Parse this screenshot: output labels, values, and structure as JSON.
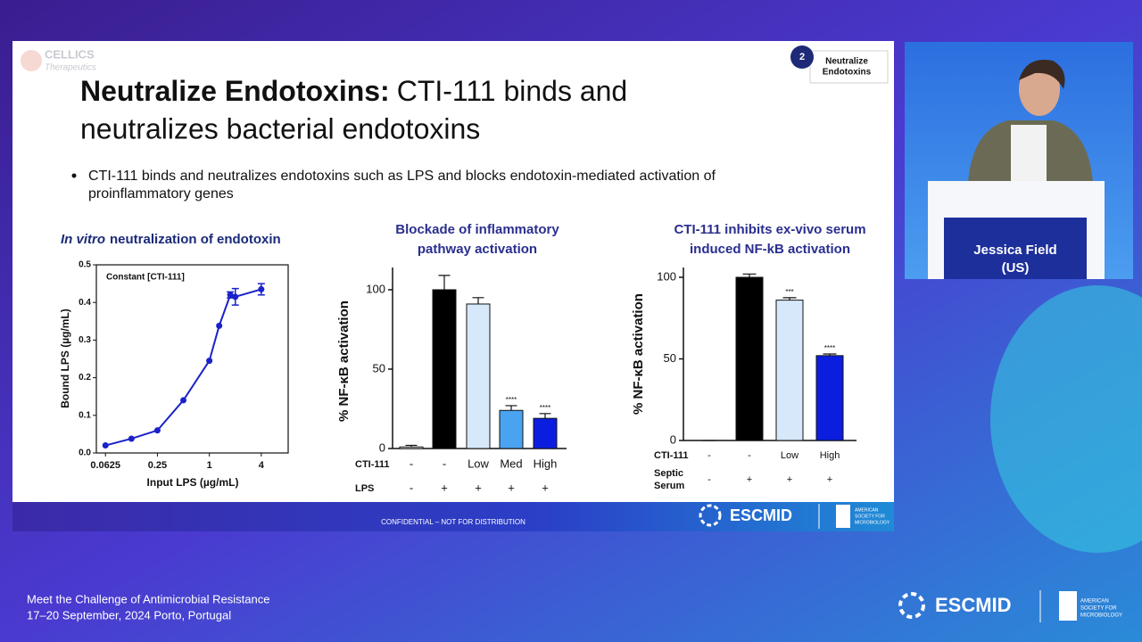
{
  "logo": {
    "name": "CELLICS",
    "sub": "Therapeutics"
  },
  "badge": {
    "number": "2",
    "label": [
      "Neutralize",
      "Endotoxins"
    ]
  },
  "slide_title": {
    "bold": "Neutralize Endotoxins:",
    "rest": [
      "CTI-111 binds and",
      "neutralizes bacterial endotoxins"
    ]
  },
  "bullet": [
    "CTI-111 binds and neutralizes endotoxins such as LPS and blocks endotoxin-mediated activation of",
    "proinflammatory genes"
  ],
  "slide_footer": {
    "confidential": "CONFIDENTIAL – NOT FOR DISTRIBUTION",
    "escmid": "ESCMID",
    "asm": [
      "AMERICAN",
      "SOCIETY FOR",
      "MICROBIOLOGY"
    ]
  },
  "speaker": {
    "name": [
      "Jessica Field",
      "(US)"
    ]
  },
  "event": {
    "title": "Meet the Challenge of Antimicrobial Resistance",
    "dates": "17–20 September, 2024 Porto, Portugal",
    "escmid": "ESCMID",
    "asm": [
      "AMERICAN",
      "SOCIETY FOR",
      "MICROBIOLOGY"
    ]
  },
  "chart_data": [
    {
      "type": "line",
      "title_italic": "In vitro",
      "title": "neutralization of endotoxin",
      "annotation": "Constant [CTI-111]",
      "x_label": "Input LPS (µg/mL)",
      "y_label": "Bound LPS (µg/mL)",
      "x": [
        0.0625,
        0.125,
        0.25,
        0.5,
        1,
        1.3,
        1.75,
        2,
        4
      ],
      "series": [
        {
          "color": "#1a22c8",
          "values": [
            0.02,
            0.038,
            0.06,
            0.14,
            0.245,
            0.338,
            0.42,
            0.415,
            0.435
          ],
          "errors": [
            null,
            null,
            null,
            null,
            null,
            null,
            0.008,
            0.022,
            0.015
          ]
        }
      ],
      "xscale": "log",
      "xlim": [
        0.049,
        8.2
      ],
      "ylim": [
        0,
        0.5
      ],
      "xticks": [
        0.0625,
        0.25,
        1,
        4
      ],
      "yticks": [
        {
          "value": 0,
          "label": "0.0"
        },
        0.1,
        0.2,
        0.3,
        0.4,
        0.5
      ]
    },
    {
      "type": "bar",
      "title": [
        "Blockade of inflammatory",
        "pathway activation"
      ],
      "y_label": "% NF-κB activation",
      "rows": [
        {
          "label": "CTI-111",
          "cells": [
            "-",
            "-",
            "Low",
            "Med",
            "High"
          ]
        },
        {
          "label": "LPS",
          "cells": [
            "-",
            "+",
            "+",
            "+",
            "+"
          ]
        }
      ],
      "values": [
        1,
        100,
        91,
        24,
        19
      ],
      "errors": [
        1,
        9,
        4,
        3,
        3
      ],
      "annotations": [
        null,
        null,
        null,
        "****",
        "****"
      ],
      "colors": [
        "#ffffff",
        "#000000",
        "#d6e8fa",
        "#4aa3f0",
        "#0b1ee0"
      ],
      "ylim": [
        0,
        114
      ],
      "yticks": [
        0,
        50,
        100
      ]
    },
    {
      "type": "bar",
      "title": [
        "CTI-111 inhibits ex-vivo serum",
        "induced NF-kB activation"
      ],
      "y_label": "% NF-κB activation",
      "rows": [
        {
          "label": "CTI-111",
          "cells": [
            "-",
            "-",
            "Low",
            "High"
          ]
        },
        {
          "label": [
            "Septic",
            "Serum"
          ],
          "cells": [
            "-",
            "+",
            "+",
            "+"
          ]
        }
      ],
      "values": [
        0,
        100,
        86,
        52
      ],
      "errors": [
        0,
        2,
        1.5,
        1
      ],
      "annotations": [
        null,
        null,
        "***",
        "****"
      ],
      "colors": [
        "#ffffff",
        "#000000",
        "#d6e8fa",
        "#0b1ee0"
      ],
      "ylim": [
        0,
        106
      ],
      "yticks": [
        0,
        50,
        100
      ]
    }
  ]
}
